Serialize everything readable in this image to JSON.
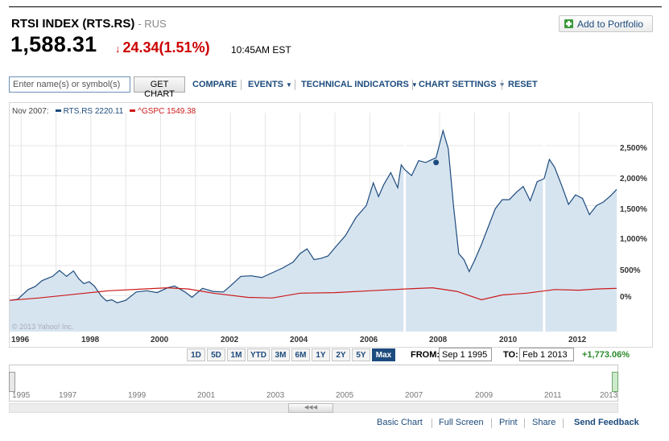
{
  "header": {
    "title": "RTSI INDEX (RTS.RS)",
    "exchange": "- RUS",
    "price": "1,588.31",
    "change": "24.34(1.51%)",
    "time": "10:45AM EST",
    "add_portfolio": "Add to Portfolio"
  },
  "toolbar": {
    "search_placeholder": "Enter name(s) or symbol(s)",
    "get_chart": "GET CHART",
    "compare": "COMPARE",
    "events": "EVENTS",
    "technical": "TECHNICAL INDICATORS",
    "settings": "CHART SETTINGS",
    "reset": "RESET"
  },
  "legend": {
    "date": "Nov 2007:",
    "rts": "RTS.RS 2220.11",
    "spx": "^GSPC 1549.38"
  },
  "watermark": "© 2013 Yahoo! Inc.",
  "ranges": [
    "1D",
    "5D",
    "1M",
    "YTD",
    "3M",
    "6M",
    "1Y",
    "2Y",
    "5Y",
    "Max"
  ],
  "active_range": "Max",
  "from_label": "FROM:",
  "from_value": "Sep 1 1995",
  "to_label": "TO:",
  "to_value": "Feb 1 2013",
  "pct_change": "+1,773.06%",
  "navigator_labels": [
    "1995",
    "1997",
    "1999",
    "2001",
    "2003",
    "2005",
    "2007",
    "2009",
    "2011",
    "2013"
  ],
  "footer": {
    "basic": "Basic Chart",
    "full": "Full Screen",
    "print": "Print",
    "share": "Share",
    "feedback": "Send Feedback"
  },
  "colors": {
    "rts": "#1d4b7d",
    "rts_fill": "#d6e4f0",
    "spx": "#cc1a1a",
    "link": "#1d4b7d"
  },
  "chart_data": {
    "type": "area",
    "xlabel": "",
    "ylabel": "",
    "x_ticks": [
      "1996",
      "1998",
      "2000",
      "2002",
      "2004",
      "2006",
      "2008",
      "2010",
      "2012"
    ],
    "y_ticks": [
      "2,500%",
      "2,000%",
      "1,500%",
      "1,000%",
      "500%",
      "0%"
    ],
    "xlim": [
      1995.67,
      2013.08
    ],
    "ylim": [
      -600,
      3050
    ],
    "grid": true,
    "legend": "top-left",
    "series": [
      {
        "name": "RTS.RS",
        "x": [
          1995.67,
          1995.9,
          1996.2,
          1996.4,
          1996.6,
          1996.9,
          1997.1,
          1997.3,
          1997.5,
          1997.65,
          1997.8,
          1997.95,
          1998.1,
          1998.3,
          1998.45,
          1998.6,
          1998.75,
          1999.0,
          1999.3,
          1999.6,
          1999.9,
          2000.2,
          2000.4,
          2000.7,
          2000.9,
          2001.2,
          2001.5,
          2001.8,
          2002.0,
          2002.3,
          2002.6,
          2002.9,
          2003.2,
          2003.5,
          2003.8,
          2004.0,
          2004.2,
          2004.4,
          2004.6,
          2004.8,
          2005.0,
          2005.3,
          2005.6,
          2005.9,
          2006.1,
          2006.25,
          2006.4,
          2006.6,
          2006.8,
          2006.9,
          2007.0,
          2007.2,
          2007.4,
          2007.6,
          2007.9,
          2008.1,
          2008.25,
          2008.4,
          2008.55,
          2008.7,
          2008.85,
          2009.0,
          2009.2,
          2009.4,
          2009.6,
          2009.8,
          2010.0,
          2010.2,
          2010.4,
          2010.6,
          2010.8,
          2011.0,
          2011.15,
          2011.3,
          2011.5,
          2011.7,
          2011.9,
          2012.1,
          2012.3,
          2012.5,
          2012.7,
          2012.9,
          2013.08
        ],
        "values": [
          -80,
          -60,
          100,
          150,
          250,
          320,
          420,
          320,
          410,
          280,
          200,
          230,
          160,
          -10,
          -90,
          -70,
          -120,
          -80,
          60,
          80,
          50,
          130,
          160,
          60,
          -30,
          120,
          70,
          60,
          160,
          320,
          330,
          300,
          380,
          460,
          560,
          700,
          780,
          600,
          620,
          660,
          800,
          1000,
          1300,
          1500,
          1880,
          1650,
          1850,
          2050,
          1800,
          2180,
          2100,
          2000,
          2250,
          2220,
          2300,
          2750,
          2450,
          1500,
          700,
          600,
          400,
          580,
          850,
          1150,
          1450,
          1600,
          1600,
          1720,
          1820,
          1580,
          1900,
          1950,
          2270,
          2140,
          1840,
          1520,
          1680,
          1620,
          1350,
          1500,
          1560,
          1660,
          1770
        ]
      },
      {
        "name": "^GSPC",
        "x": [
          1995.67,
          1996.5,
          1997.5,
          1998.5,
          1999.5,
          2000.2,
          2000.8,
          2001.5,
          2002.5,
          2003.2,
          2004.0,
          2005.0,
          2006.0,
          2007.0,
          2007.8,
          2008.5,
          2009.2,
          2009.8,
          2010.5,
          2011.3,
          2012.0,
          2012.5,
          2013.08
        ],
        "values": [
          -80,
          -40,
          20,
          80,
          110,
          130,
          110,
          40,
          -30,
          -40,
          40,
          50,
          80,
          110,
          130,
          70,
          -70,
          10,
          40,
          100,
          90,
          110,
          120
        ]
      }
    ]
  }
}
